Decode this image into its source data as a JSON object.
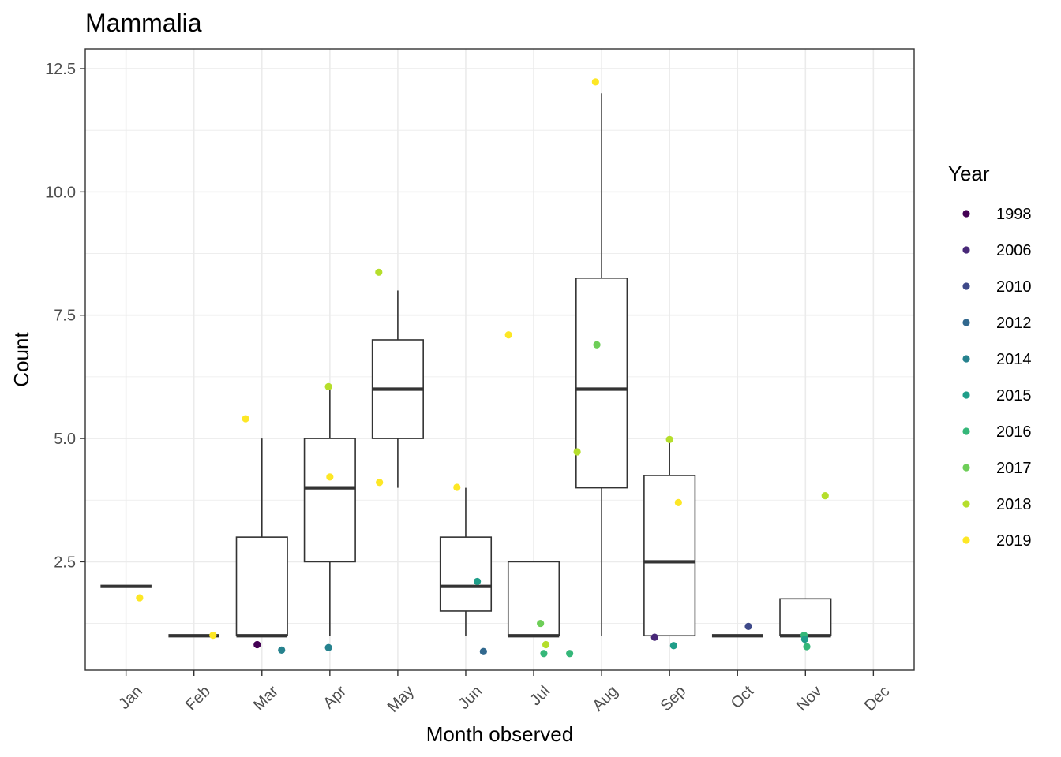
{
  "chart_data": {
    "type": "box",
    "title": "Mammalia",
    "xlabel": "Month observed",
    "ylabel": "Count",
    "categories": [
      "Jan",
      "Feb",
      "Mar",
      "Apr",
      "May",
      "Jun",
      "Jul",
      "Aug",
      "Sep",
      "Oct",
      "Nov",
      "Dec"
    ],
    "ylim": [
      0.3,
      12.9
    ],
    "yticks": [
      2.5,
      5.0,
      7.5,
      10.0,
      12.5
    ],
    "ytick_labels": [
      "2.5",
      "5.0",
      "7.5",
      "10.0",
      "12.5"
    ],
    "grid": true,
    "legend": {
      "title": "Year",
      "placement": "right",
      "entries": [
        {
          "label": "1998",
          "color": "#440154"
        },
        {
          "label": "2006",
          "color": "#482878"
        },
        {
          "label": "2010",
          "color": "#3e4989"
        },
        {
          "label": "2012",
          "color": "#31688e"
        },
        {
          "label": "2014",
          "color": "#26828e"
        },
        {
          "label": "2015",
          "color": "#1f9e89"
        },
        {
          "label": "2016",
          "color": "#35b779"
        },
        {
          "label": "2017",
          "color": "#6ece58"
        },
        {
          "label": "2018",
          "color": "#b5de2b"
        },
        {
          "label": "2019",
          "color": "#fde725"
        }
      ]
    },
    "boxes": [
      {
        "month": "Jan",
        "min": 2,
        "q1": 2,
        "median": 2,
        "q3": 2,
        "max": 2
      },
      {
        "month": "Feb",
        "min": 1,
        "q1": 1,
        "median": 1,
        "q3": 1,
        "max": 1
      },
      {
        "month": "Mar",
        "min": 1,
        "q1": 1,
        "median": 1,
        "q3": 3,
        "max": 5
      },
      {
        "month": "Apr",
        "min": 1,
        "q1": 2.5,
        "median": 4,
        "q3": 5,
        "max": 6
      },
      {
        "month": "May",
        "min": 4,
        "q1": 5,
        "median": 6,
        "q3": 7,
        "max": 8
      },
      {
        "month": "Jun",
        "min": 1,
        "q1": 1.5,
        "median": 2,
        "q3": 3,
        "max": 4
      },
      {
        "month": "Jul",
        "min": 1,
        "q1": 1,
        "median": 1,
        "q3": 2.5,
        "max": 2.5
      },
      {
        "month": "Aug",
        "min": 1,
        "q1": 4,
        "median": 6,
        "q3": 8.25,
        "max": 12
      },
      {
        "month": "Sep",
        "min": 1,
        "q1": 1,
        "median": 2.5,
        "q3": 4.25,
        "max": 5
      },
      {
        "month": "Oct",
        "min": 1,
        "q1": 1,
        "median": 1,
        "q3": 1,
        "max": 1
      },
      {
        "month": "Nov",
        "min": 1,
        "q1": 1,
        "median": 1,
        "q3": 1.75,
        "max": 1.75
      }
    ],
    "points": [
      {
        "x": 1.2,
        "y": 1.77,
        "year": "2019"
      },
      {
        "x": 2.28,
        "y": 1.01,
        "year": "2019"
      },
      {
        "x": 2.76,
        "y": 5.4,
        "year": "2019"
      },
      {
        "x": 2.93,
        "y": 0.82,
        "year": "1998"
      },
      {
        "x": 3.29,
        "y": 0.71,
        "year": "2014"
      },
      {
        "x": 3.98,
        "y": 6.05,
        "year": "2018"
      },
      {
        "x": 4.0,
        "y": 4.22,
        "year": "2019"
      },
      {
        "x": 3.98,
        "y": 0.76,
        "year": "2014"
      },
      {
        "x": 4.72,
        "y": 8.37,
        "year": "2018"
      },
      {
        "x": 4.73,
        "y": 4.11,
        "year": "2019"
      },
      {
        "x": 5.87,
        "y": 4.01,
        "year": "2019"
      },
      {
        "x": 6.17,
        "y": 2.1,
        "year": "2015"
      },
      {
        "x": 6.26,
        "y": 0.68,
        "year": "2012"
      },
      {
        "x": 6.63,
        "y": 7.1,
        "year": "2019"
      },
      {
        "x": 7.1,
        "y": 1.25,
        "year": "2017"
      },
      {
        "x": 7.18,
        "y": 0.82,
        "year": "2018"
      },
      {
        "x": 7.15,
        "y": 0.64,
        "year": "2016"
      },
      {
        "x": 7.53,
        "y": 0.64,
        "year": "2016"
      },
      {
        "x": 7.64,
        "y": 4.73,
        "year": "2018"
      },
      {
        "x": 7.91,
        "y": 12.23,
        "year": "2019"
      },
      {
        "x": 7.93,
        "y": 6.9,
        "year": "2017"
      },
      {
        "x": 8.78,
        "y": 0.97,
        "year": "2006"
      },
      {
        "x": 9.0,
        "y": 4.98,
        "year": "2018"
      },
      {
        "x": 9.06,
        "y": 0.8,
        "year": "2015"
      },
      {
        "x": 9.13,
        "y": 3.7,
        "year": "2019"
      },
      {
        "x": 10.16,
        "y": 1.19,
        "year": "2010"
      },
      {
        "x": 10.98,
        "y": 1.01,
        "year": "2016"
      },
      {
        "x": 10.99,
        "y": 0.93,
        "year": "2015"
      },
      {
        "x": 11.02,
        "y": 0.78,
        "year": "2016"
      },
      {
        "x": 11.29,
        "y": 3.84,
        "year": "2018"
      }
    ]
  }
}
